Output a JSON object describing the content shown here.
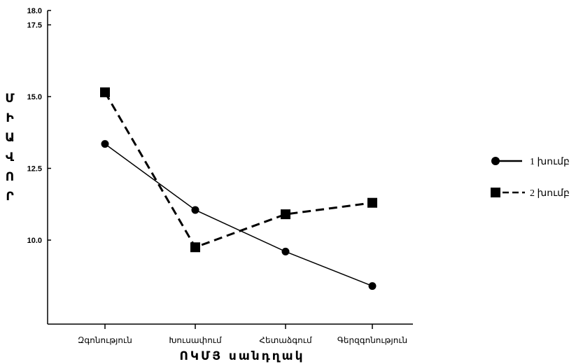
{
  "chart_data": {
    "type": "line",
    "categories": [
      "Զգոնություն",
      "Խուսափում",
      "Հետաձգում",
      "Գերզգոնություն"
    ],
    "series": [
      {
        "name": "1 խումբ",
        "values": [
          13.35,
          11.05,
          9.6,
          8.4
        ],
        "marker": "circle",
        "line_style": "solid",
        "color": "#000000"
      },
      {
        "name": "2 խումբ",
        "values": [
          15.15,
          9.75,
          10.9,
          11.3
        ],
        "marker": "square",
        "line_style": "dashed",
        "color": "#000000"
      }
    ],
    "ylim": [
      8.0,
      18.0
    ],
    "yticks": [
      "10.0",
      "12.5",
      "15.0",
      "17.5",
      "18.0"
    ],
    "ytick_values": [
      10.0,
      12.5,
      15.0,
      17.5,
      18.0
    ],
    "xlabel": "ՈԿՄՅ սանդղակ",
    "ylabel_letters": [
      "Մ",
      "Ի",
      "Ա",
      "Վ",
      "Ո",
      "Ր"
    ],
    "grid": false,
    "legend_position": "right"
  }
}
